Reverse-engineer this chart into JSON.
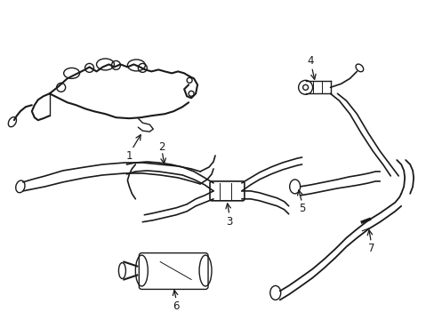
{
  "background_color": "#ffffff",
  "line_color": "#1a1a1a",
  "lw": 1.0,
  "fig_width": 4.89,
  "fig_height": 3.6,
  "dpi": 100
}
